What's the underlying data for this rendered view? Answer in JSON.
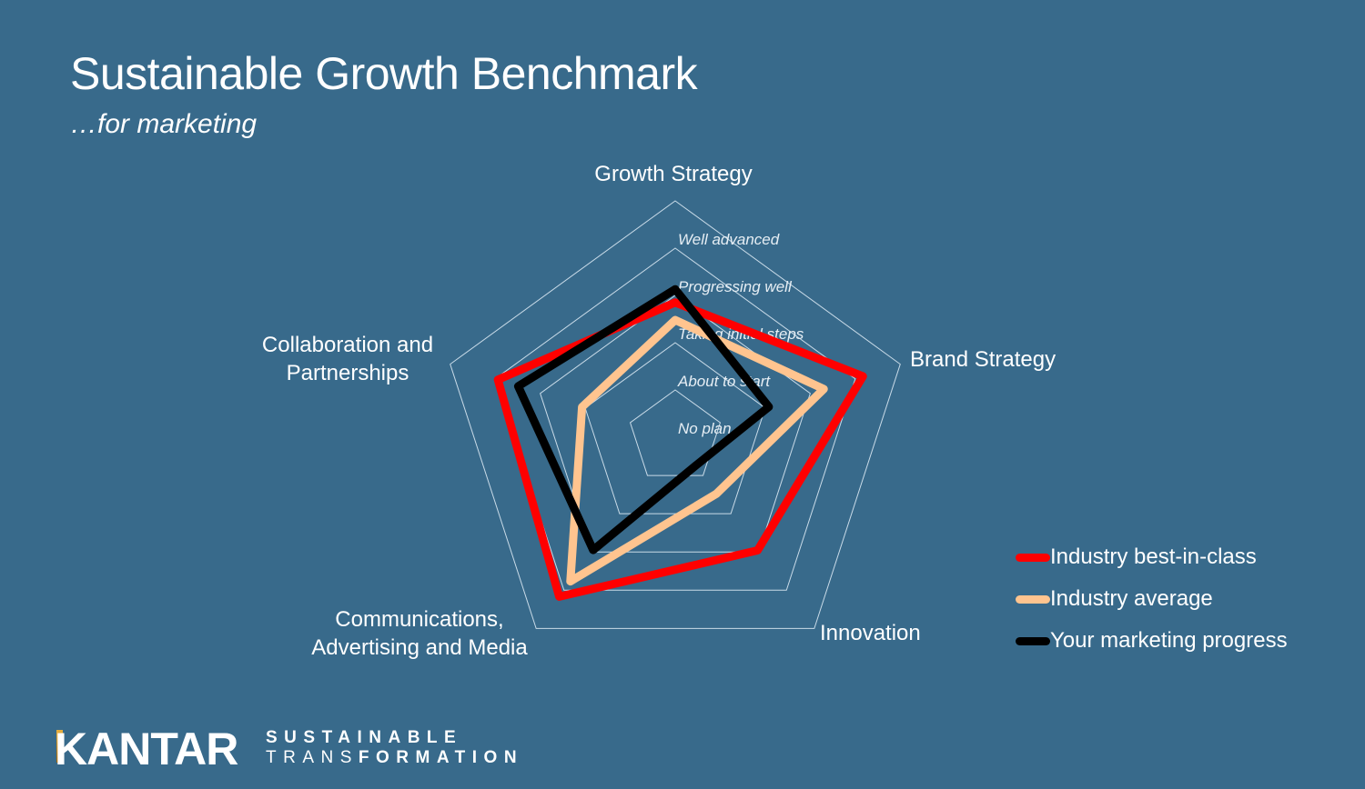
{
  "title": "Sustainable Growth Benchmark",
  "subtitle": "…for marketing",
  "logo": {
    "brand": "KANTAR",
    "tagline_1": "SUSTAINABLE",
    "tagline_2_light": "TRANS",
    "tagline_2_bold": "FORMATION"
  },
  "chart_data": {
    "type": "radar",
    "axes": [
      "Growth Strategy",
      "Brand Strategy",
      "Innovation",
      "Communications, Advertising and Media",
      "Collaboration and Partnerships"
    ],
    "axis_label_lines": [
      [
        "Growth Strategy"
      ],
      [
        "Brand Strategy"
      ],
      [
        "Innovation"
      ],
      [
        "Communications,",
        "Advertising and Media"
      ],
      [
        "Collaboration and",
        "Partnerships"
      ]
    ],
    "levels": [
      "No plan",
      "About to start",
      "Taking initial steps",
      "Progressing well",
      "Well advanced"
    ],
    "range": [
      0,
      5
    ],
    "grid": true,
    "legend_position": "right",
    "series": [
      {
        "name": "Industry best-in-class",
        "color": "#ff0000",
        "values": [
          2.85,
          4.17,
          2.96,
          4.17,
          3.94
        ]
      },
      {
        "name": "Industry average",
        "color": "#ffc48f",
        "values": [
          2.48,
          3.3,
          1.48,
          3.77,
          2.07
        ]
      },
      {
        "name": "Your marketing progress",
        "color": "#000000",
        "values": [
          3.13,
          2.08,
          0.74,
          2.95,
          3.49
        ]
      }
    ]
  }
}
